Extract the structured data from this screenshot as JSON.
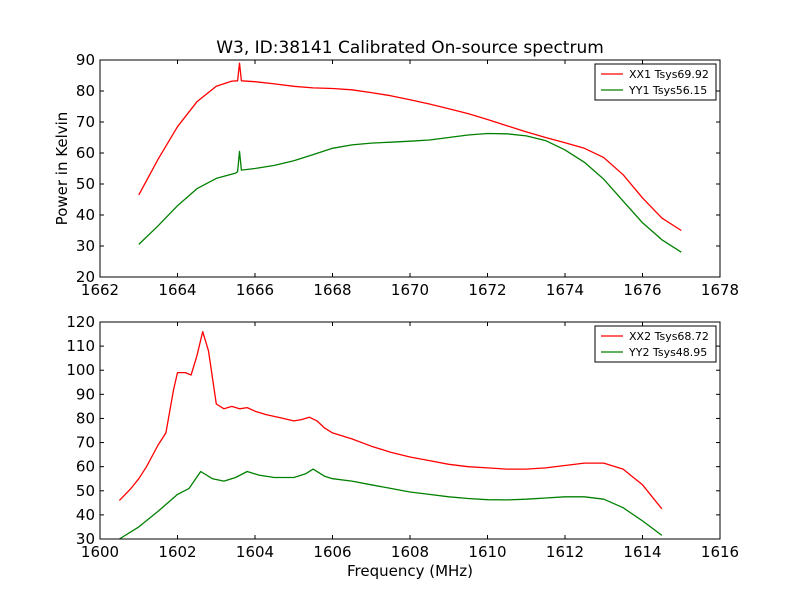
{
  "title": "W3, ID:38141 Calibrated On-source spectrum",
  "colors": {
    "xx": "#ff0000",
    "yy": "#008000"
  },
  "chart_data": [
    {
      "type": "line",
      "xlabel": "",
      "ylabel": "Power in Kelvin",
      "xlim": [
        1662,
        1678
      ],
      "ylim": [
        20,
        90
      ],
      "xticks": [
        "1662",
        "1664",
        "1666",
        "1668",
        "1670",
        "1672",
        "1674",
        "1676",
        "1678"
      ],
      "yticks": [
        "20",
        "30",
        "40",
        "50",
        "60",
        "70",
        "80",
        "90"
      ],
      "legend": "top-right",
      "series": [
        {
          "name": "XX1 Tsys69.92",
          "color": "#ff0000",
          "x": [
            1663.0,
            1663.5,
            1664.0,
            1664.5,
            1665.0,
            1665.4,
            1665.55,
            1665.6,
            1665.65,
            1666.0,
            1666.5,
            1667.0,
            1667.5,
            1668.0,
            1668.5,
            1669.0,
            1669.5,
            1670.0,
            1670.5,
            1671.0,
            1671.5,
            1672.0,
            1672.5,
            1673.0,
            1673.5,
            1674.0,
            1674.5,
            1675.0,
            1675.5,
            1676.0,
            1676.5,
            1677.0
          ],
          "y": [
            46.5,
            58,
            68.5,
            76.5,
            81.5,
            83.2,
            83.3,
            89,
            83.3,
            83.0,
            82.3,
            81.5,
            81.0,
            80.8,
            80.4,
            79.5,
            78.5,
            77.2,
            75.8,
            74.3,
            72.7,
            70.8,
            68.8,
            66.8,
            65.0,
            63.3,
            61.5,
            58.5,
            53.0,
            45.5,
            39.0,
            35.0
          ]
        },
        {
          "name": "YY1 Tsys56.15",
          "color": "#008000",
          "x": [
            1663.0,
            1663.5,
            1664.0,
            1664.5,
            1665.0,
            1665.5,
            1665.55,
            1665.6,
            1665.65,
            1666.0,
            1666.5,
            1667.0,
            1667.5,
            1668.0,
            1668.5,
            1669.0,
            1669.5,
            1670.0,
            1670.5,
            1671.0,
            1671.5,
            1672.0,
            1672.5,
            1673.0,
            1673.5,
            1674.0,
            1674.5,
            1675.0,
            1675.5,
            1676.0,
            1676.5,
            1677.0
          ],
          "y": [
            30.5,
            36.5,
            43,
            48.5,
            51.8,
            53.5,
            54.0,
            60.5,
            54.5,
            55.0,
            56.0,
            57.5,
            59.5,
            61.5,
            62.6,
            63.2,
            63.5,
            63.8,
            64.2,
            65.0,
            65.8,
            66.3,
            66.2,
            65.5,
            64.0,
            61.0,
            57.0,
            51.5,
            44.5,
            37.5,
            32.0,
            28.0
          ]
        }
      ]
    },
    {
      "type": "line",
      "xlabel": "Frequency (MHz)",
      "ylabel": "",
      "xlim": [
        1600,
        1616
      ],
      "ylim": [
        30,
        120
      ],
      "xticks": [
        "1600",
        "1602",
        "1604",
        "1606",
        "1608",
        "1610",
        "1612",
        "1614",
        "1616"
      ],
      "yticks": [
        "30",
        "40",
        "50",
        "60",
        "70",
        "80",
        "90",
        "100",
        "110",
        "120"
      ],
      "legend": "top-right",
      "series": [
        {
          "name": "XX2 Tsys68.72",
          "color": "#ff0000",
          "x": [
            1600.5,
            1600.8,
            1601.0,
            1601.2,
            1601.5,
            1601.7,
            1601.9,
            1602.0,
            1602.2,
            1602.35,
            1602.5,
            1602.65,
            1602.8,
            1603.0,
            1603.2,
            1603.4,
            1603.6,
            1603.8,
            1604.0,
            1604.3,
            1604.6,
            1605.0,
            1605.2,
            1605.4,
            1605.6,
            1605.8,
            1606.0,
            1606.5,
            1607.0,
            1607.5,
            1608.0,
            1608.5,
            1609.0,
            1609.5,
            1610.0,
            1610.5,
            1611.0,
            1611.5,
            1612.0,
            1612.5,
            1613.0,
            1613.5,
            1614.0,
            1614.5
          ],
          "y": [
            46,
            51,
            55,
            60,
            69,
            74,
            92,
            99,
            99,
            98,
            106,
            116,
            108,
            86,
            84,
            85,
            84,
            84.5,
            83,
            81.5,
            80.5,
            79,
            79.5,
            80.5,
            79,
            76,
            74,
            71.5,
            68.5,
            66,
            64,
            62.5,
            61,
            60,
            59.5,
            59,
            59,
            59.5,
            60.5,
            61.5,
            61.5,
            59,
            52.5,
            42.5
          ]
        },
        {
          "name": "YY2 Tsys48.95",
          "color": "#008000",
          "x": [
            1600.5,
            1601.0,
            1601.5,
            1602.0,
            1602.3,
            1602.6,
            1602.9,
            1603.2,
            1603.5,
            1603.8,
            1604.1,
            1604.5,
            1605.0,
            1605.3,
            1605.5,
            1605.8,
            1606.0,
            1606.5,
            1607.0,
            1607.5,
            1608.0,
            1608.5,
            1609.0,
            1609.5,
            1610.0,
            1610.5,
            1611.0,
            1611.5,
            1612.0,
            1612.5,
            1613.0,
            1613.5,
            1614.0,
            1614.5
          ],
          "y": [
            30,
            35,
            41.5,
            48.5,
            51,
            58,
            55,
            54,
            55.5,
            58,
            56.5,
            55.5,
            55.5,
            57,
            59,
            56,
            55,
            54,
            52.5,
            51,
            49.5,
            48.5,
            47.5,
            46.8,
            46.3,
            46.2,
            46.5,
            47,
            47.5,
            47.5,
            46.5,
            43,
            37.5,
            31.5
          ]
        }
      ]
    }
  ]
}
